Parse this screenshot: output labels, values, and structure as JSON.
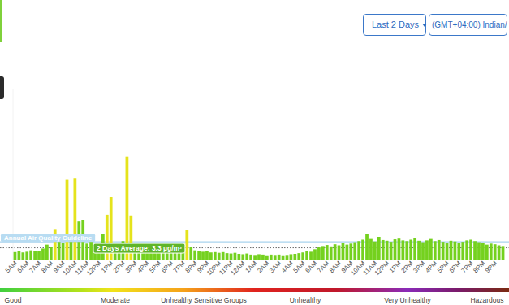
{
  "chart_data": {
    "type": "bar",
    "range_selector": "Last 2 Days",
    "timezone": "(GMT+04:00) Indian/",
    "guideline": 5,
    "guideline_label": "Annual Air Quality Guideline",
    "average": 3.3,
    "average_label": "2 Days Average: 3.3 µg/m³",
    "aqi_legend": [
      "Good",
      "Moderate",
      "Unhealthy Sensitive Groups",
      "Unhealthy",
      "Very Unhealthy",
      "Hazardous"
    ],
    "ylim": [
      0,
      48
    ],
    "tick_labels": "x",
    "grid": false,
    "categories": [
      "5AM",
      null,
      null,
      "6AM",
      null,
      null,
      "7AM",
      null,
      null,
      "8AM",
      null,
      null,
      "9AM",
      null,
      null,
      "10AM",
      null,
      null,
      "11AM",
      null,
      null,
      "12PM",
      null,
      null,
      "1PM",
      null,
      null,
      "2PM",
      null,
      null,
      "3PM",
      null,
      null,
      "4PM",
      null,
      null,
      "5PM",
      null,
      null,
      "6PM",
      null,
      null,
      "7PM",
      null,
      null,
      "8PM",
      null,
      null,
      "9PM",
      null,
      null,
      "10PM",
      null,
      null,
      "11PM",
      null,
      null,
      "12AM",
      null,
      null,
      "1AM",
      null,
      null,
      "2AM",
      null,
      null,
      "3AM",
      null,
      null,
      "4AM",
      null,
      null,
      "5AM",
      null,
      null,
      "6AM",
      null,
      null,
      "7AM",
      null,
      null,
      "8AM",
      null,
      null,
      "9AM",
      null,
      null,
      "10AM",
      null,
      null,
      "11AM",
      null,
      null,
      "12PM",
      null,
      null,
      "1PM",
      null,
      null,
      "2PM",
      null,
      null,
      "3PM",
      null,
      null,
      "4PM",
      null,
      null,
      "5PM",
      null,
      null,
      "6PM",
      null,
      null,
      "7PM",
      null,
      null,
      "8PM",
      null,
      null,
      "9PM",
      null,
      null
    ],
    "values": [
      2.1,
      2.4,
      2.0,
      2.2,
      2.6,
      2.3,
      2.5,
      3.1,
      4.2,
      3.6,
      8.6,
      5.1,
      4.8,
      22.5,
      6.2,
      22.8,
      10.7,
      11.2,
      4.5,
      5.9,
      3.8,
      4.2,
      7.1,
      12.6,
      17.6,
      4.4,
      3.9,
      5.2,
      29.1,
      12.4,
      4.1,
      3.6,
      3.2,
      3.4,
      3.0,
      3.3,
      2.9,
      3.2,
      2.8,
      3.1,
      2.7,
      3.5,
      3.0,
      8.4,
      3.6,
      2.6,
      2.4,
      2.2,
      2.3,
      2.0,
      2.1,
      1.9,
      2.1,
      1.8,
      1.7,
      1.9,
      1.6,
      1.5,
      1.7,
      1.4,
      1.3,
      1.5,
      1.4,
      1.2,
      1.4,
      1.3,
      1.4,
      1.2,
      1.3,
      1.5,
      1.6,
      1.8,
      2.0,
      2.4,
      2.2,
      2.9,
      3.4,
      3.8,
      4.1,
      3.7,
      4.3,
      4.0,
      4.6,
      4.2,
      4.5,
      4.9,
      5.2,
      5.6,
      7.3,
      5.8,
      5.1,
      6.4,
      5.5,
      5.3,
      5.0,
      5.7,
      5.9,
      5.4,
      5.2,
      5.6,
      6.1,
      5.3,
      4.9,
      5.4,
      5.8,
      5.2,
      5.5,
      5.0,
      4.8,
      5.3,
      5.1,
      4.7,
      5.0,
      5.4,
      5.6,
      5.2,
      4.9,
      4.6,
      4.2,
      4.5,
      4.3,
      4.0,
      3.8
    ],
    "colors": [
      "#74d11e",
      "#74d11e",
      "#74d11e",
      "#74d11e",
      "#74d11e",
      "#74d11e",
      "#74d11e",
      "#74d11e",
      "#74d11e",
      "#74d11e",
      "#e5e31c",
      "#74d11e",
      "#74d11e",
      "#e5e31c",
      "#74d11e",
      "#e5e31c",
      "#74d11e",
      "#74d11e",
      "#74d11e",
      "#74d11e",
      "#74d11e",
      "#74d11e",
      "#74d11e",
      "#e5e31c",
      "#e5e31c",
      "#74d11e",
      "#74d11e",
      "#74d11e",
      "#e5e31c",
      "#e5e31c",
      "#74d11e",
      "#74d11e",
      "#74d11e",
      "#74d11e",
      "#74d11e",
      "#74d11e",
      "#74d11e",
      "#74d11e",
      "#74d11e",
      "#74d11e",
      "#74d11e",
      "#74d11e",
      "#74d11e",
      "#e5e31c",
      "#74d11e",
      "#74d11e",
      "#74d11e",
      "#74d11e",
      "#74d11e",
      "#74d11e",
      "#74d11e",
      "#74d11e",
      "#74d11e",
      "#74d11e",
      "#74d11e",
      "#74d11e",
      "#74d11e",
      "#74d11e",
      "#74d11e",
      "#74d11e",
      "#74d11e",
      "#74d11e",
      "#74d11e",
      "#74d11e",
      "#74d11e",
      "#74d11e",
      "#74d11e",
      "#74d11e",
      "#74d11e",
      "#74d11e",
      "#74d11e",
      "#74d11e",
      "#74d11e",
      "#74d11e",
      "#74d11e",
      "#74d11e",
      "#74d11e",
      "#74d11e",
      "#74d11e",
      "#74d11e",
      "#74d11e",
      "#74d11e",
      "#74d11e",
      "#74d11e",
      "#74d11e",
      "#74d11e",
      "#74d11e",
      "#74d11e",
      "#74d11e",
      "#74d11e",
      "#74d11e",
      "#74d11e",
      "#74d11e",
      "#74d11e",
      "#74d11e",
      "#74d11e",
      "#74d11e",
      "#74d11e",
      "#74d11e",
      "#74d11e",
      "#74d11e",
      "#74d11e",
      "#74d11e",
      "#74d11e",
      "#74d11e",
      "#74d11e",
      "#74d11e",
      "#74d11e",
      "#74d11e",
      "#74d11e",
      "#74d11e",
      "#74d11e",
      "#74d11e",
      "#74d11e",
      "#74d11e",
      "#74d11e",
      "#74d11e",
      "#74d11e",
      "#74d11e",
      "#74d11e",
      "#74d11e",
      "#74d11e",
      "#74d11e",
      "#74d11e",
      "#74d11e",
      "#74d11e",
      "#74d11e",
      "#74d11e",
      "#74d11e",
      "#74d11e",
      "#74d11e",
      "#74d11e"
    ]
  }
}
